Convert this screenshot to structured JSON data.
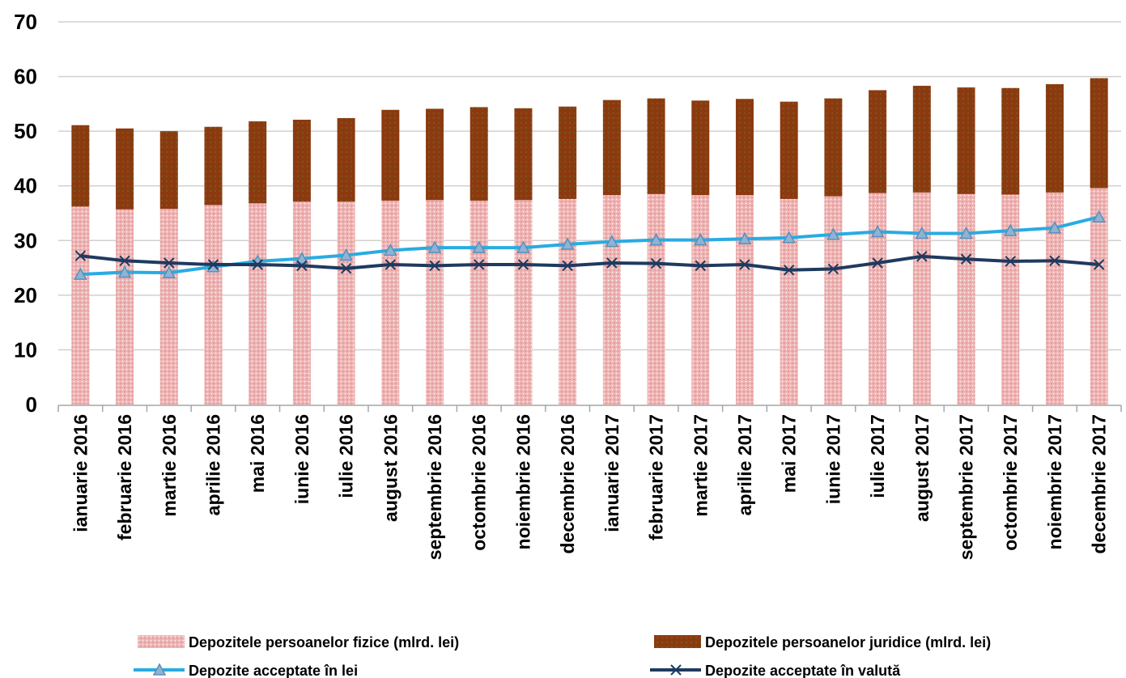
{
  "chart_data": {
    "type": "bar",
    "stacked": true,
    "ylim": [
      0,
      70
    ],
    "yticks": [
      0,
      10,
      20,
      30,
      40,
      50,
      60,
      70
    ],
    "grid": true,
    "legend_position": "bottom",
    "categories": [
      "ianuarie 2016",
      "februarie 2016",
      "martie 2016",
      "aprilie 2016",
      "mai 2016",
      "iunie 2016",
      "iulie 2016",
      "august 2016",
      "septembrie 2016",
      "octombrie 2016",
      "noiembrie 2016",
      "decembrie 2016",
      "ianuarie 2017",
      "februarie 2017",
      "martie 2017",
      "aprilie 2017",
      "mai 2017",
      "iunie 2017",
      "iulie 2017",
      "august 2017",
      "septembrie 2017",
      "octombrie 2017",
      "noiembrie 2017",
      "decembrie 2017"
    ],
    "series": [
      {
        "name": "Depozitele persoanelor fizice (mlrd. lei)",
        "kind": "bar",
        "color": "#e8a3a3",
        "values": [
          36.2,
          35.7,
          35.8,
          36.5,
          36.8,
          37.1,
          37.1,
          37.3,
          37.4,
          37.3,
          37.4,
          37.6,
          38.3,
          38.5,
          38.3,
          38.3,
          37.6,
          38.1,
          38.7,
          38.8,
          38.5,
          38.4,
          38.8,
          39.6
        ]
      },
      {
        "name": "Depozitele persoanelor juridice (mlrd. lei)",
        "kind": "bar",
        "color": "#8b3a0f",
        "values": [
          14.9,
          14.8,
          14.2,
          14.3,
          15.0,
          15.0,
          15.3,
          16.6,
          16.7,
          17.1,
          16.8,
          16.9,
          17.4,
          17.5,
          17.3,
          17.6,
          17.8,
          17.9,
          18.8,
          19.5,
          19.5,
          19.5,
          19.8,
          20.1
        ]
      },
      {
        "name": "Depozite acceptate în lei",
        "kind": "line",
        "marker": "triangle",
        "color": "#29abe2",
        "values": [
          23.8,
          24.2,
          24.1,
          25.2,
          26.2,
          26.7,
          27.3,
          28.2,
          28.7,
          28.7,
          28.7,
          29.3,
          29.8,
          30.1,
          30.1,
          30.3,
          30.5,
          31.1,
          31.6,
          31.3,
          31.3,
          31.8,
          32.3,
          34.3
        ]
      },
      {
        "name": "Depozite acceptate în valută",
        "kind": "line",
        "marker": "x",
        "color": "#1f3a5f",
        "values": [
          27.2,
          26.3,
          25.9,
          25.6,
          25.6,
          25.4,
          24.9,
          25.6,
          25.4,
          25.6,
          25.6,
          25.4,
          25.9,
          25.8,
          25.4,
          25.6,
          24.6,
          24.8,
          25.9,
          27.1,
          26.6,
          26.2,
          26.3,
          25.6
        ]
      }
    ]
  }
}
